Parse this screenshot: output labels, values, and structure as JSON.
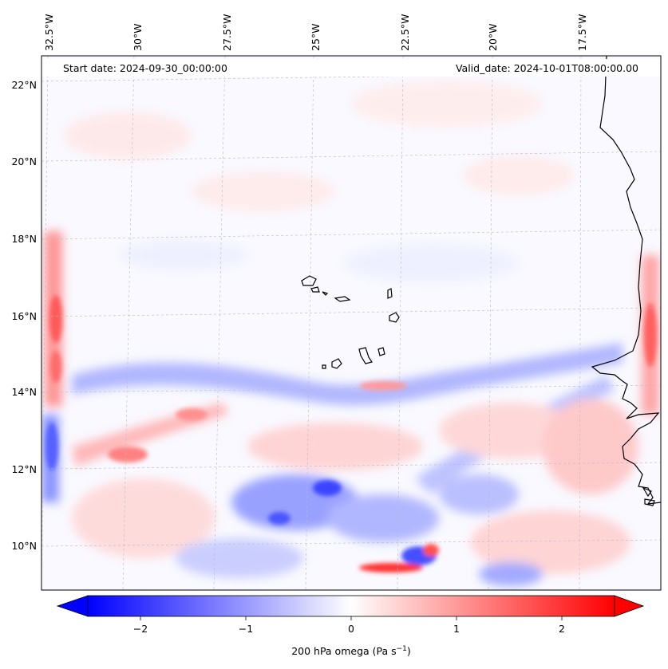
{
  "map": {
    "start_date_label": "Start date: 2024-09-30_00:00:00",
    "valid_date_label": "Valid_date: 2024-10-01T08:00:00.00",
    "lon_labels": [
      "32.5°W",
      "30°W",
      "27.5°W",
      "25°W",
      "22.5°W",
      "20°W",
      "17.5°W"
    ],
    "lat_labels": [
      "22°N",
      "20°N",
      "18°N",
      "16°N",
      "14°N",
      "12°N",
      "10°N"
    ],
    "colorbar": {
      "label_main": "200 hPa omega (Pa s",
      "label_exp": "−1",
      "label_close": ")",
      "ticks": [
        "−2",
        "−1",
        "0",
        "1",
        "2"
      ],
      "tick_values": [
        -2,
        -1,
        0,
        1,
        2
      ],
      "vmin": -2.5,
      "vmax": 2.5,
      "colormap": "bwr",
      "color_low": "#0000ff",
      "color_mid": "#ffffff",
      "color_high": "#ff0000"
    },
    "coastline_color": "#000000",
    "gridline_color": "#b0b0b0"
  }
}
